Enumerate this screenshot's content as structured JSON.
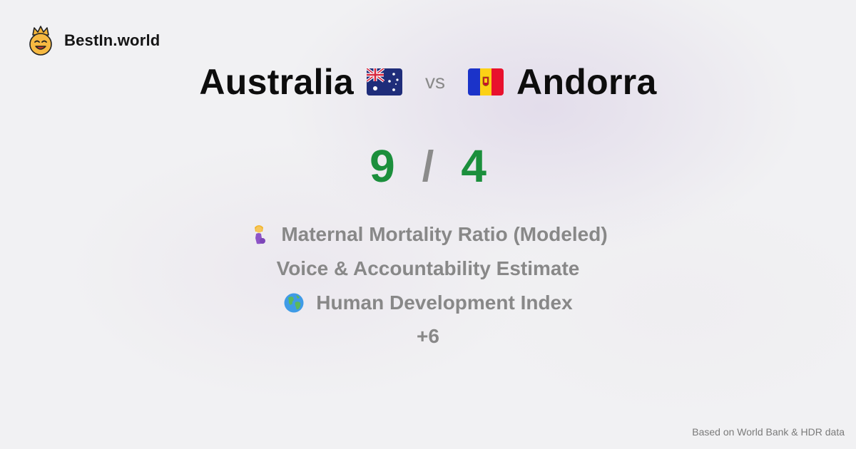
{
  "brand": {
    "name": "BestIn.world",
    "icon": "crowned-smiley-icon"
  },
  "comparison": {
    "left_country": "Australia",
    "left_flag": "australia-flag-icon",
    "vs_label": "vs",
    "right_country": "Andorra",
    "right_flag": "andorra-flag-icon"
  },
  "score": {
    "left": "9",
    "separator": "/",
    "right": "4",
    "color": "#1b8f3c"
  },
  "metrics": [
    {
      "label": "Maternal Mortality Ratio (Modeled)",
      "icon": "pregnant-woman-icon"
    },
    {
      "label": "Voice & Accountability Estimate",
      "icon": ""
    },
    {
      "label": "Human Development Index",
      "icon": "globe-icon"
    }
  ],
  "more_label": "+6",
  "footer": {
    "source": "Based on World Bank & HDR data"
  }
}
